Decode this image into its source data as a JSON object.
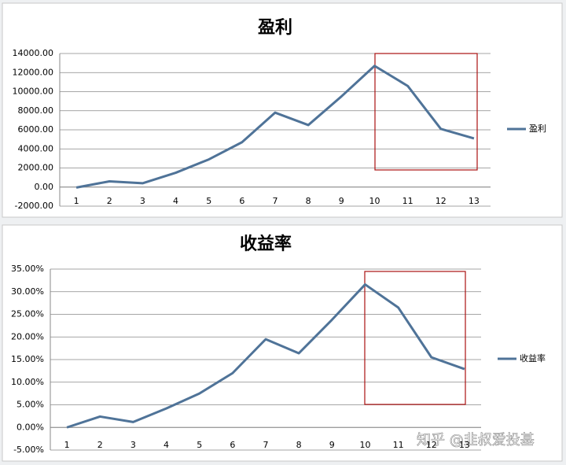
{
  "chart_data": [
    {
      "type": "line",
      "title": "盈利",
      "categories": [
        1,
        2,
        3,
        4,
        5,
        6,
        7,
        8,
        9,
        10,
        11,
        12,
        13
      ],
      "series": [
        {
          "name": "盈利",
          "color": "#4f7398",
          "values": [
            -50,
            600,
            400,
            1500,
            2900,
            4700,
            7800,
            6500,
            9500,
            12700,
            10600,
            6100,
            5100
          ]
        }
      ],
      "ylim": [
        -2000,
        14000
      ],
      "yticks": [
        {
          "value": -2000,
          "label": "-2000.00"
        },
        {
          "value": 0,
          "label": "0.00"
        },
        {
          "value": 2000,
          "label": "2000.00"
        },
        {
          "value": 4000,
          "label": "4000.00"
        },
        {
          "value": 6000,
          "label": "6000.00"
        },
        {
          "value": 8000,
          "label": "8000.00"
        },
        {
          "value": 10000,
          "label": "10000.00"
        },
        {
          "value": 12000,
          "label": "12000.00"
        },
        {
          "value": 14000,
          "label": "14000.00"
        }
      ],
      "grid": true,
      "legend": "right"
    },
    {
      "type": "line",
      "title": "收益率",
      "categories": [
        1,
        2,
        3,
        4,
        5,
        6,
        7,
        8,
        9,
        10,
        11,
        12,
        13
      ],
      "series": [
        {
          "name": "收益率",
          "color": "#4f7398",
          "values": [
            0,
            2.4,
            1.2,
            4.2,
            7.5,
            12,
            19.5,
            16.4,
            23.8,
            31.6,
            26.5,
            15.5,
            12.9
          ]
        }
      ],
      "ylim": [
        -5,
        35
      ],
      "yticks": [
        {
          "value": -5,
          "label": "-5.00%"
        },
        {
          "value": 0,
          "label": "0.00%"
        },
        {
          "value": 5,
          "label": "5.00%"
        },
        {
          "value": 10,
          "label": "10.00%"
        },
        {
          "value": 15,
          "label": "15.00%"
        },
        {
          "value": 20,
          "label": "20.00%"
        },
        {
          "value": 25,
          "label": "25.00%"
        },
        {
          "value": 30,
          "label": "30.00%"
        },
        {
          "value": 35,
          "label": "35.00%"
        }
      ],
      "grid": true,
      "legend": "right"
    }
  ],
  "watermark": "知乎 @韭叔爱投基"
}
